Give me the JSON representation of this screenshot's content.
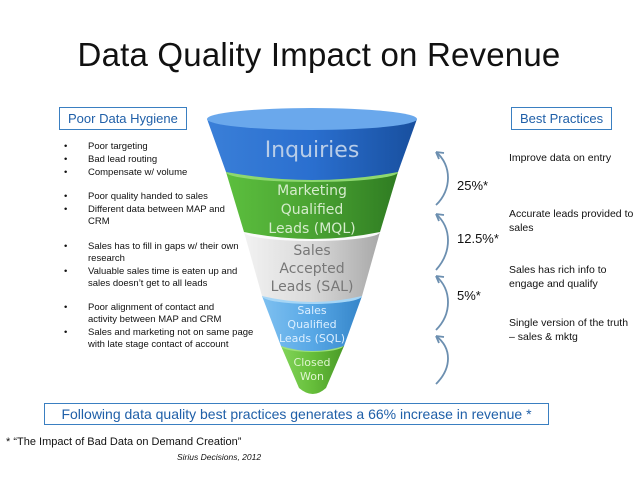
{
  "title": "Data Quality Impact on Revenue",
  "left_header": "Poor Data Hygiene",
  "right_header": "Best Practices",
  "funnel": {
    "stages": [
      {
        "lines": [
          "Inquiries"
        ],
        "color": "#1f5fbf"
      },
      {
        "lines": [
          "Marketing",
          "Qualified",
          "Leads (MQL)"
        ],
        "color": "#4aa332"
      },
      {
        "lines": [
          "Sales",
          "Accepted",
          "Leads (SAL)"
        ],
        "color": "#d8d8d8"
      },
      {
        "lines": [
          "Sales",
          "Qualified",
          "Leads (SQL)"
        ],
        "color": "#58a8e6"
      },
      {
        "lines": [
          "Closed",
          "Won"
        ],
        "color": "#66be3a"
      }
    ]
  },
  "left_groups": [
    {
      "items": [
        "Poor targeting",
        "Bad lead routing",
        "Compensate w/ volume"
      ]
    },
    {
      "items": [
        "Poor quality handed to sales",
        "Different data between MAP and CRM"
      ]
    },
    {
      "items": [
        "Sales has to fill in gaps w/ their own research",
        "Valuable sales time is eaten up and sales doesn’t get to all leads"
      ]
    },
    {
      "items": [
        "Poor alignment of contact and activity between MAP and CRM",
        "Sales and marketing not on same page with late stage contact of account"
      ]
    }
  ],
  "bullet_symbol": "•",
  "percentages": [
    "25%*",
    "12.5%*",
    "5%*"
  ],
  "right_notes": [
    "Improve data on entry",
    "Accurate leads provided to sales",
    "Sales has rich info to engage and qualify",
    "Single version of the truth – sales & mktg"
  ],
  "footer": "Following data quality best practices generates a 66% increase in revenue *",
  "citation": {
    "line1": "* “The Impact of Bad Data on Demand Creation”",
    "line2": "Sirius Decisions, 2012"
  },
  "colors": {
    "accent_blue": "#3a7fc1",
    "accent_text": "#1f5fa8",
    "arrow": "#6c8fb0"
  }
}
